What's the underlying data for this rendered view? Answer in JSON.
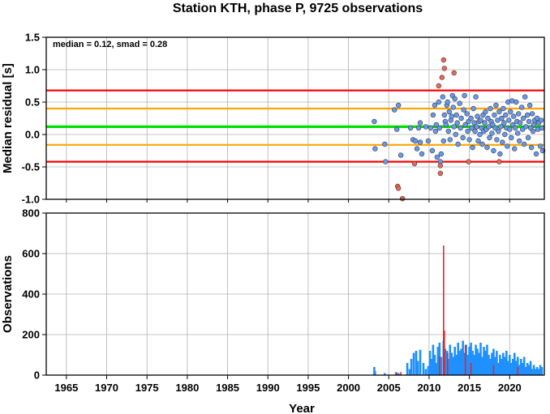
{
  "chart_data": [
    {
      "type": "scatter",
      "title": "Station KTH, phase P, 9725 observations",
      "xlabel": "",
      "ylabel": "Median residual [s]",
      "xlim": [
        1962.5,
        2024.3
      ],
      "ylim": [
        -1.0,
        1.5
      ],
      "yticks": [
        "1.5",
        "1.0",
        "0.5",
        "0.0",
        "-0.5",
        "-1.0"
      ],
      "ytick_values": [
        1.5,
        1.0,
        0.5,
        0.0,
        -0.5,
        -1.0
      ],
      "grid": true,
      "annotation": "median = 0.12, smad = 0.28",
      "reference_lines": [
        {
          "y": 0.12,
          "color": "#00e000",
          "role": "median"
        },
        {
          "y": 0.4,
          "color": "#ffa500",
          "role": "median+smad"
        },
        {
          "y": -0.16,
          "color": "#ffa500",
          "role": "median-smad"
        },
        {
          "y": 0.68,
          "color": "#ff0000",
          "role": "median+2smad"
        },
        {
          "y": -0.42,
          "color": "#ff0000",
          "role": "median-2smad"
        }
      ],
      "point_colors": {
        "inlier": "#6699ee",
        "outlier": "#ee6655"
      },
      "series": [
        {
          "group": "inlier",
          "points": [
            [
              2003.2,
              0.2
            ],
            [
              2003.3,
              -0.22
            ],
            [
              2004.5,
              -0.15
            ],
            [
              2004.6,
              -0.42
            ],
            [
              2005.7,
              0.38
            ],
            [
              2006.0,
              0.08
            ],
            [
              2006.2,
              0.45
            ],
            [
              2006.5,
              -0.32
            ],
            [
              2007.7,
              0.1
            ],
            [
              2008.0,
              -0.08
            ],
            [
              2008.3,
              -0.1
            ],
            [
              2008.5,
              -0.22
            ],
            [
              2008.7,
              0.1
            ],
            [
              2008.9,
              0.18
            ],
            [
              2008.9,
              -0.12
            ],
            [
              2009.1,
              -0.3
            ],
            [
              2009.6,
              0.12
            ],
            [
              2009.9,
              -0.1
            ],
            [
              2010.2,
              0.1
            ],
            [
              2010.4,
              -0.25
            ],
            [
              2010.5,
              0.3
            ],
            [
              2010.7,
              0.45
            ],
            [
              2010.8,
              0.05
            ],
            [
              2010.9,
              0.15
            ],
            [
              2011.0,
              -0.35
            ],
            [
              2011.2,
              0.5
            ],
            [
              2011.3,
              0.1
            ],
            [
              2011.4,
              -0.42
            ],
            [
              2011.5,
              -0.3
            ],
            [
              2011.7,
              0.58
            ],
            [
              2011.8,
              -0.1
            ],
            [
              2011.9,
              0.3
            ],
            [
              2012.0,
              0.2
            ],
            [
              2012.1,
              0.15
            ],
            [
              2012.2,
              0.45
            ],
            [
              2012.3,
              0.5
            ],
            [
              2012.4,
              0.05
            ],
            [
              2012.5,
              0.35
            ],
            [
              2012.6,
              -0.08
            ],
            [
              2012.7,
              0.22
            ],
            [
              2012.8,
              0.28
            ],
            [
              2012.9,
              0.6
            ],
            [
              2013.0,
              0.42
            ],
            [
              2013.1,
              0.12
            ],
            [
              2013.2,
              0.55
            ],
            [
              2013.3,
              0.0
            ],
            [
              2013.4,
              0.3
            ],
            [
              2013.5,
              0.18
            ],
            [
              2013.6,
              -0.15
            ],
            [
              2013.8,
              0.48
            ],
            [
              2013.9,
              0.1
            ],
            [
              2014.0,
              0.25
            ],
            [
              2014.2,
              -0.05
            ],
            [
              2014.3,
              0.38
            ],
            [
              2014.4,
              0.6
            ],
            [
              2014.5,
              0.15
            ],
            [
              2014.7,
              0.32
            ],
            [
              2014.8,
              0.05
            ],
            [
              2014.9,
              0.2
            ],
            [
              2015.0,
              -0.08
            ],
            [
              2015.2,
              0.25
            ],
            [
              2015.3,
              0.1
            ],
            [
              2015.4,
              -0.2
            ],
            [
              2015.5,
              0.4
            ],
            [
              2015.6,
              0.18
            ],
            [
              2015.7,
              0.05
            ],
            [
              2015.8,
              0.58
            ],
            [
              2015.9,
              0.12
            ],
            [
              2016.0,
              0.28
            ],
            [
              2016.1,
              -0.1
            ],
            [
              2016.2,
              0.2
            ],
            [
              2016.3,
              0.0
            ],
            [
              2016.4,
              0.22
            ],
            [
              2016.5,
              0.1
            ],
            [
              2016.6,
              -0.15
            ],
            [
              2016.7,
              0.3
            ],
            [
              2016.8,
              0.05
            ],
            [
              2016.9,
              0.18
            ],
            [
              2017.0,
              0.35
            ],
            [
              2017.1,
              0.08
            ],
            [
              2017.2,
              -0.2
            ],
            [
              2017.3,
              0.25
            ],
            [
              2017.4,
              0.12
            ],
            [
              2017.5,
              -0.05
            ],
            [
              2017.6,
              0.4
            ],
            [
              2017.7,
              0.2
            ],
            [
              2017.8,
              0.02
            ],
            [
              2017.9,
              0.15
            ],
            [
              2018.0,
              -0.25
            ],
            [
              2018.1,
              0.3
            ],
            [
              2018.2,
              0.1
            ],
            [
              2018.3,
              0.45
            ],
            [
              2018.4,
              -0.08
            ],
            [
              2018.5,
              0.22
            ],
            [
              2018.6,
              0.05
            ],
            [
              2018.7,
              0.35
            ],
            [
              2018.8,
              -0.3
            ],
            [
              2018.9,
              0.12
            ],
            [
              2019.0,
              0.25
            ],
            [
              2019.1,
              -0.12
            ],
            [
              2019.2,
              0.4
            ],
            [
              2019.3,
              0.18
            ],
            [
              2019.4,
              0.0
            ],
            [
              2019.5,
              0.3
            ],
            [
              2019.6,
              0.1
            ],
            [
              2019.7,
              -0.18
            ],
            [
              2019.8,
              0.5
            ],
            [
              2019.9,
              0.22
            ],
            [
              2020.0,
              0.08
            ],
            [
              2020.1,
              0.35
            ],
            [
              2020.2,
              -0.05
            ],
            [
              2020.3,
              0.52
            ],
            [
              2020.4,
              0.15
            ],
            [
              2020.5,
              0.28
            ],
            [
              2020.6,
              -0.22
            ],
            [
              2020.7,
              0.1
            ],
            [
              2020.8,
              0.5
            ],
            [
              2020.9,
              0.2
            ],
            [
              2021.0,
              0.02
            ],
            [
              2021.1,
              0.32
            ],
            [
              2021.2,
              -0.1
            ],
            [
              2021.3,
              0.18
            ],
            [
              2021.5,
              0.42
            ],
            [
              2021.6,
              0.08
            ],
            [
              2021.7,
              0.25
            ],
            [
              2021.8,
              -0.15
            ],
            [
              2021.9,
              0.58
            ],
            [
              2022.0,
              0.12
            ],
            [
              2022.2,
              0.3
            ],
            [
              2022.3,
              -0.05
            ],
            [
              2022.4,
              0.2
            ],
            [
              2022.5,
              0.45
            ],
            [
              2022.6,
              0.1
            ],
            [
              2022.7,
              -0.2
            ],
            [
              2022.8,
              0.32
            ],
            [
              2022.9,
              0.05
            ],
            [
              2023.0,
              0.15
            ],
            [
              2023.1,
              0.22
            ],
            [
              2023.3,
              -0.3
            ],
            [
              2023.4,
              0.25
            ],
            [
              2023.5,
              0.08
            ],
            [
              2023.6,
              0.18
            ],
            [
              2023.8,
              -0.18
            ],
            [
              2023.9,
              0.22
            ],
            [
              2024.0,
              0.1
            ],
            [
              2024.1,
              -0.25
            ]
          ]
        },
        {
          "group": "outlier",
          "points": [
            [
              2006.1,
              -0.8
            ],
            [
              2006.2,
              -0.83
            ],
            [
              2006.7,
              -0.99
            ],
            [
              2008.2,
              -0.45
            ],
            [
              2011.2,
              0.75
            ],
            [
              2011.4,
              -0.48
            ],
            [
              2011.4,
              -0.6
            ],
            [
              2011.6,
              0.88
            ],
            [
              2011.8,
              1.15
            ],
            [
              2011.9,
              1.02
            ],
            [
              2013.1,
              0.95
            ],
            [
              2014.9,
              -0.42
            ],
            [
              2018.7,
              -0.42
            ]
          ]
        }
      ]
    },
    {
      "type": "bar",
      "title": "",
      "xlabel": "Year",
      "ylabel": "Observations",
      "xlim": [
        1962.5,
        2024.3
      ],
      "ylim": [
        0,
        800
      ],
      "xticks": [
        "1965",
        "1970",
        "1975",
        "1980",
        "1985",
        "1990",
        "1995",
        "2000",
        "2005",
        "2010",
        "2015",
        "2020"
      ],
      "xtick_values": [
        1965,
        1970,
        1975,
        1980,
        1985,
        1990,
        1995,
        2000,
        2005,
        2010,
        2015,
        2020
      ],
      "yticks": [
        "800",
        "600",
        "400",
        "200",
        "0"
      ],
      "ytick_values": [
        800,
        600,
        400,
        200,
        0
      ],
      "grid": true,
      "bar_colors": {
        "inlier": "#1e90ff",
        "outlier": "#ee2222"
      },
      "series": [
        {
          "group": "inlier",
          "x": [
            2003.2,
            2003.3,
            2004.5,
            2005.9,
            2006.2,
            2006.4,
            2007.3,
            2007.6,
            2007.8,
            2008.1,
            2008.4,
            2008.6,
            2008.9,
            2009.3,
            2009.6,
            2009.9,
            2010.1,
            2010.3,
            2010.5,
            2010.7,
            2010.9,
            2011.1,
            2011.3,
            2011.5,
            2011.8,
            2012.0,
            2012.2,
            2012.4,
            2012.6,
            2012.8,
            2013.0,
            2013.2,
            2013.4,
            2013.6,
            2013.8,
            2014.0,
            2014.2,
            2014.4,
            2014.6,
            2014.8,
            2015.0,
            2015.2,
            2015.4,
            2015.6,
            2015.8,
            2016.0,
            2016.2,
            2016.4,
            2016.6,
            2016.8,
            2017.0,
            2017.2,
            2017.4,
            2017.6,
            2017.8,
            2018.0,
            2018.2,
            2018.4,
            2018.6,
            2018.8,
            2019.0,
            2019.2,
            2019.4,
            2019.6,
            2019.8,
            2020.0,
            2020.2,
            2020.4,
            2020.6,
            2020.8,
            2021.0,
            2021.2,
            2021.4,
            2021.6,
            2021.8,
            2022.0,
            2022.2,
            2022.4,
            2022.6,
            2022.8,
            2023.0,
            2023.2,
            2023.4,
            2023.6,
            2023.8,
            2024.0
          ],
          "values": [
            40,
            20,
            10,
            15,
            10,
            5,
            60,
            30,
            80,
            110,
            120,
            70,
            125,
            60,
            30,
            45,
            120,
            80,
            150,
            100,
            60,
            140,
            160,
            90,
            170,
            130,
            120,
            80,
            150,
            110,
            90,
            140,
            100,
            160,
            120,
            130,
            170,
            110,
            150,
            100,
            140,
            160,
            120,
            100,
            150,
            130,
            110,
            160,
            90,
            140,
            120,
            150,
            100,
            80,
            110,
            130,
            90,
            120,
            60,
            100,
            80,
            110,
            90,
            120,
            70,
            100,
            60,
            80,
            110,
            70,
            90,
            50,
            80,
            60,
            90,
            40,
            60,
            50,
            70,
            30,
            50,
            30,
            40,
            30,
            50,
            40
          ]
        },
        {
          "group": "outlier",
          "x": [
            2006.0,
            2006.5,
            2011.3,
            2011.8,
            2011.9,
            2012.3,
            2014.5,
            2015.2,
            2018.0,
            2021.0
          ],
          "values": [
            10,
            15,
            90,
            640,
            220,
            110,
            150,
            60,
            50,
            40
          ]
        }
      ]
    }
  ]
}
